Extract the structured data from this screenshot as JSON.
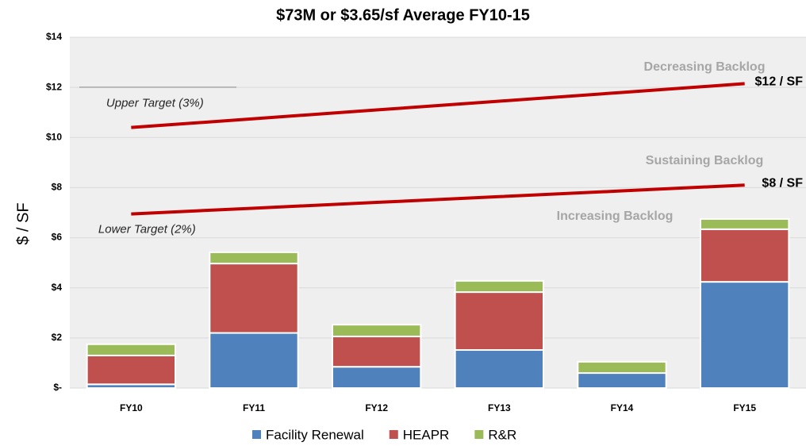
{
  "chart_data": {
    "type": "bar",
    "stacked": true,
    "title": "$73M or $3.65/sf Average FY10-15",
    "y_label": "$ / SF",
    "categories": [
      "FY10",
      "FY11",
      "FY12",
      "FY13",
      "FY14",
      "FY15"
    ],
    "series": [
      {
        "name": "Facility Renewal",
        "color": "#4f81bd",
        "values": [
          0.15,
          2.2,
          0.85,
          1.52,
          0.6,
          4.24
        ]
      },
      {
        "name": "HEAPR",
        "color": "#c0504d",
        "values": [
          1.15,
          2.77,
          1.21,
          2.31,
          0,
          2.1
        ]
      },
      {
        "name": "R&R",
        "color": "#9bbb59",
        "values": [
          0.45,
          0.45,
          0.47,
          0.45,
          0.45,
          0.41
        ]
      }
    ],
    "ylim": [
      0,
      14
    ],
    "yticks": [
      {
        "value": 0,
        "label": "$-"
      },
      {
        "value": 2,
        "label": "$2"
      },
      {
        "value": 4,
        "label": "$4"
      },
      {
        "value": 6,
        "label": "$6"
      },
      {
        "value": 8,
        "label": "$8"
      },
      {
        "value": 10,
        "label": "$10"
      },
      {
        "value": 12,
        "label": "$12"
      },
      {
        "value": 14,
        "label": "$14"
      }
    ],
    "grid": true,
    "legend": "bottom",
    "target_lines": [
      {
        "label": "Upper Target (3%)",
        "end_label": "$12 / SF",
        "color": "#c00000",
        "values": [
          10.4,
          10.75,
          11.1,
          11.45,
          11.8,
          12.15
        ]
      },
      {
        "label": "Lower Target (2%)",
        "end_label": "$8 / SF",
        "color": "#c00000",
        "values": [
          6.95,
          7.18,
          7.41,
          7.64,
          7.87,
          8.1
        ]
      }
    ],
    "annotations": [
      "Decreasing Backlog",
      "Sustaining Backlog",
      "Increasing Backlog"
    ]
  }
}
